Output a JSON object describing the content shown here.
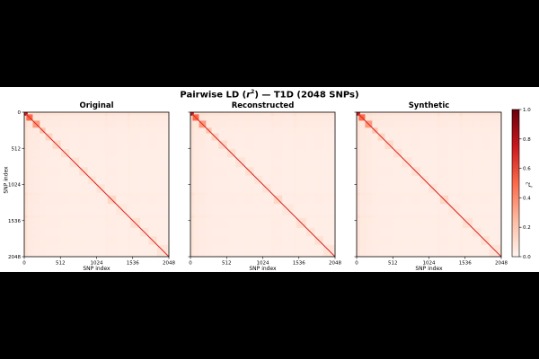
{
  "chart_data": {
    "type": "heatmap",
    "suptitle_prefix": "Pairwise LD (",
    "suptitle_var": "r",
    "suptitle_exp": "2",
    "suptitle_suffix": ") — T1D (2048 SNPs)",
    "panels": [
      {
        "title": "Original",
        "xlabel": "SNP index",
        "ylabel": "SNP index"
      },
      {
        "title": "Reconstructed",
        "xlabel": "SNP index",
        "ylabel": ""
      },
      {
        "title": "Synthetic",
        "xlabel": "SNP index",
        "ylabel": ""
      }
    ],
    "x_ticks": [
      "0",
      "512",
      "1024",
      "1536",
      "2048"
    ],
    "y_ticks": [
      "0",
      "512",
      "1024",
      "1536",
      "2048"
    ],
    "x_tick_values": [
      0,
      512,
      1024,
      1536,
      2048
    ],
    "y_tick_values": [
      0,
      512,
      1024,
      1536,
      2048
    ],
    "xlim": [
      0,
      2048
    ],
    "ylim": [
      2048,
      0
    ],
    "colormap": "Reds",
    "colorbar": {
      "label_var": "r",
      "label_exp": "2",
      "range": [
        0.0,
        1.0
      ],
      "ticks": [
        "0.0",
        "0.2",
        "0.4",
        "0.6",
        "0.8",
        "1.0"
      ],
      "tick_values": [
        0.0,
        0.2,
        0.4,
        0.6,
        0.8,
        1.0
      ]
    },
    "ld_blocks": [
      {
        "start": 0,
        "end": 48,
        "r2": 0.85
      },
      {
        "start": 30,
        "end": 120,
        "r2": 0.5
      },
      {
        "start": 120,
        "end": 220,
        "r2": 0.35
      },
      {
        "start": 220,
        "end": 300,
        "r2": 0.22
      },
      {
        "start": 300,
        "end": 400,
        "r2": 0.16
      },
      {
        "start": 400,
        "end": 520,
        "r2": 0.14
      },
      {
        "start": 520,
        "end": 640,
        "r2": 0.12
      },
      {
        "start": 640,
        "end": 780,
        "r2": 0.1
      },
      {
        "start": 780,
        "end": 900,
        "r2": 0.12
      },
      {
        "start": 900,
        "end": 1020,
        "r2": 0.09
      },
      {
        "start": 1020,
        "end": 1140,
        "r2": 0.1
      },
      {
        "start": 1180,
        "end": 1300,
        "r2": 0.15
      },
      {
        "start": 1300,
        "end": 1460,
        "r2": 0.08
      },
      {
        "start": 1500,
        "end": 1640,
        "r2": 0.12
      },
      {
        "start": 1640,
        "end": 1760,
        "r2": 0.1
      },
      {
        "start": 1760,
        "end": 1880,
        "r2": 0.12
      },
      {
        "start": 1880,
        "end": 2048,
        "r2": 0.1
      }
    ],
    "background_r2": 0.06
  }
}
